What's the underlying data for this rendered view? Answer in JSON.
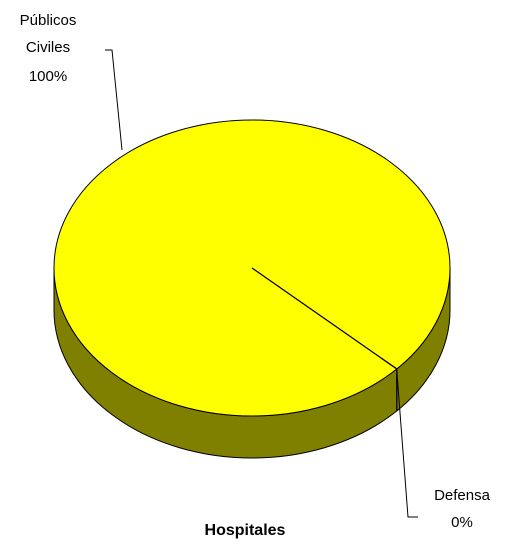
{
  "chart_data": {
    "type": "pie",
    "style": "3d",
    "title": "Hospitales",
    "slices": [
      {
        "label_lines": [
          "Públicos",
          "Civiles"
        ],
        "percent_label": "100%",
        "value": 100,
        "color": "#ffff00",
        "side_color": "#808000"
      },
      {
        "label_lines": [
          "Defensa"
        ],
        "percent_label": "0%",
        "value": 0,
        "color": "#ffff00",
        "side_color": "#808000"
      }
    ],
    "legend": "none",
    "edge_color": "#000000"
  }
}
